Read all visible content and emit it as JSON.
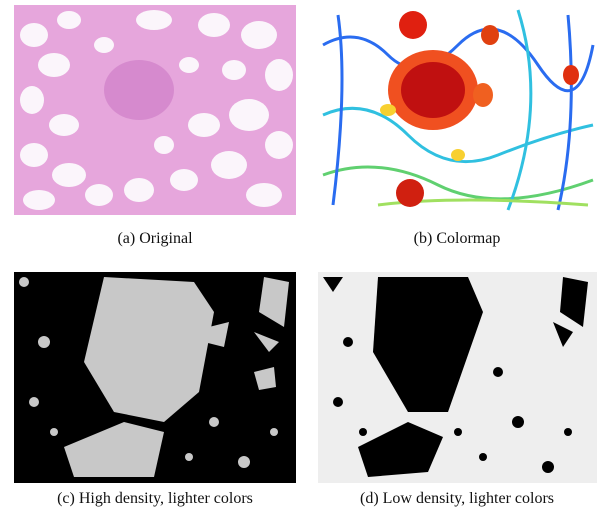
{
  "figures": [
    {
      "caption": "(a) Original"
    },
    {
      "caption": "(b) Colormap"
    },
    {
      "caption": "(c) High density, lighter colors"
    },
    {
      "caption": "(d) Low density, lighter colors"
    }
  ]
}
